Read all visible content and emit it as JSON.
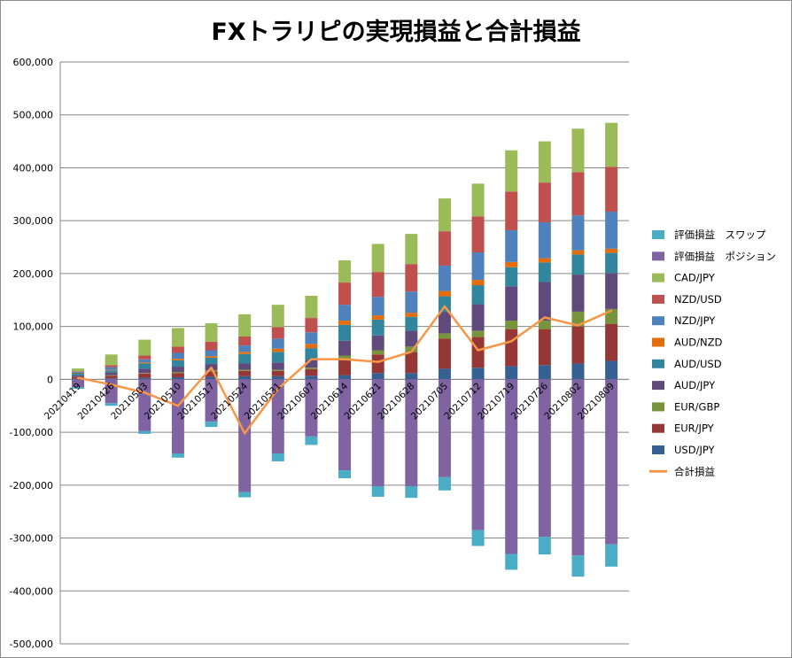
{
  "chart_data": {
    "type": "bar",
    "subtype": "stacked bar with line",
    "title": "FXトラリピの実現損益と合計損益",
    "xlabel": "",
    "ylabel": "",
    "ylim": [
      -500000,
      600000
    ],
    "yticks": [
      600000,
      500000,
      400000,
      300000,
      200000,
      100000,
      0,
      -100000,
      -200000,
      -300000,
      -400000,
      -500000
    ],
    "ytick_labels": [
      "600,000",
      "500,000",
      "400,000",
      "300,000",
      "200,000",
      "100,000",
      "0",
      "-100,000",
      "-200,000",
      "-300,000",
      "-400,000",
      "-500,000"
    ],
    "grid": true,
    "legend_position": "right",
    "categories": [
      "20210419",
      "20210426",
      "20210503",
      "20210510",
      "20210517",
      "20210524",
      "20210531",
      "20210607",
      "20210614",
      "20210621",
      "20210628",
      "20210705",
      "20210712",
      "20210719",
      "20210726",
      "20210802",
      "20210809"
    ],
    "positive_series": [
      {
        "name": "USD/JPY",
        "color": "#376092",
        "values": [
          1000,
          2000,
          3000,
          4000,
          5000,
          6000,
          6000,
          7000,
          8000,
          12000,
          12000,
          20000,
          22000,
          25000,
          27000,
          30000,
          35000
        ]
      },
      {
        "name": "EUR/JPY",
        "color": "#953735",
        "values": [
          3000,
          5000,
          8000,
          8000,
          10000,
          10000,
          10000,
          12000,
          29000,
          35000,
          40000,
          57000,
          58000,
          70000,
          68000,
          70000,
          70000
        ]
      },
      {
        "name": "EUR/GBP",
        "color": "#77933c",
        "values": [
          500,
          1000,
          1000,
          2000,
          2000,
          2000,
          2000,
          3000,
          8000,
          8000,
          10000,
          10000,
          12000,
          16000,
          16000,
          28000,
          28000
        ]
      },
      {
        "name": "AUD/JPY",
        "color": "#604a7b",
        "values": [
          3000,
          5000,
          8000,
          10000,
          12000,
          12000,
          14000,
          15000,
          28000,
          28000,
          30000,
          40000,
          50000,
          65000,
          73000,
          70000,
          68000
        ]
      },
      {
        "name": "AUD/USD",
        "color": "#31859c",
        "values": [
          4000,
          4000,
          10000,
          12000,
          12000,
          18000,
          20000,
          22000,
          30000,
          30000,
          26000,
          30000,
          36000,
          36000,
          37000,
          38000,
          38000
        ]
      },
      {
        "name": "AUD/NZD",
        "color": "#e46c0a",
        "values": [
          1000,
          1000,
          2000,
          3000,
          3000,
          4000,
          6000,
          8000,
          8000,
          8000,
          8000,
          10000,
          10000,
          10000,
          8000,
          8000,
          8000
        ]
      },
      {
        "name": "NZD/JPY",
        "color": "#4f81bd",
        "values": [
          2000,
          5000,
          6000,
          11000,
          11000,
          12000,
          19000,
          22000,
          30000,
          35000,
          40000,
          48000,
          52000,
          60000,
          68000,
          66000,
          70000
        ]
      },
      {
        "name": "NZD/USD",
        "color": "#c0504d",
        "values": [
          1000,
          4000,
          7000,
          12000,
          16000,
          17000,
          22000,
          27000,
          42000,
          47000,
          52000,
          65000,
          68000,
          73000,
          75000,
          82000,
          85000
        ]
      },
      {
        "name": "CAD/JPY",
        "color": "#9bbb59",
        "values": [
          5000,
          20000,
          30000,
          35000,
          35000,
          42000,
          42000,
          42000,
          42000,
          53000,
          57000,
          62000,
          62000,
          78000,
          78000,
          82000,
          83000
        ]
      }
    ],
    "negative_series": [
      {
        "name": "評価損益　ポジション",
        "color": "#8064a2",
        "values": [
          -15000,
          -45000,
          -98000,
          -140000,
          -80000,
          -213000,
          -140000,
          -108000,
          -172000,
          -202000,
          -202000,
          -185000,
          -285000,
          -330000,
          -298000,
          -333000,
          -312000
        ]
      },
      {
        "name": "評価損益　スワップ",
        "color": "#4bacc6",
        "values": [
          -3000,
          -5000,
          -5000,
          -8000,
          -10000,
          -10000,
          -15000,
          -16000,
          -15000,
          -20000,
          -22000,
          -25000,
          -30000,
          -30000,
          -33000,
          -40000,
          -42000
        ]
      }
    ],
    "line_series": {
      "name": "合計損益",
      "color": "#f79646",
      "values": [
        3000,
        -10000,
        -25000,
        -50000,
        22000,
        -102000,
        -18000,
        38000,
        38000,
        33000,
        52000,
        138000,
        55000,
        72000,
        117000,
        102000,
        130000
      ]
    },
    "legend_entries": [
      {
        "name": "評価損益　スワップ",
        "color": "#4bacc6",
        "kind": "box"
      },
      {
        "name": "評価損益　ポジション",
        "color": "#8064a2",
        "kind": "box"
      },
      {
        "name": "CAD/JPY",
        "color": "#9bbb59",
        "kind": "box"
      },
      {
        "name": "NZD/USD",
        "color": "#c0504d",
        "kind": "box"
      },
      {
        "name": "NZD/JPY",
        "color": "#4f81bd",
        "kind": "box"
      },
      {
        "name": "AUD/NZD",
        "color": "#e46c0a",
        "kind": "box"
      },
      {
        "name": "AUD/USD",
        "color": "#31859c",
        "kind": "box"
      },
      {
        "name": "AUD/JPY",
        "color": "#604a7b",
        "kind": "box"
      },
      {
        "name": "EUR/GBP",
        "color": "#77933c",
        "kind": "box"
      },
      {
        "name": "EUR/JPY",
        "color": "#953735",
        "kind": "box"
      },
      {
        "name": "USD/JPY",
        "color": "#376092",
        "kind": "box"
      },
      {
        "name": "合計損益",
        "color": "#f79646",
        "kind": "line"
      }
    ]
  }
}
